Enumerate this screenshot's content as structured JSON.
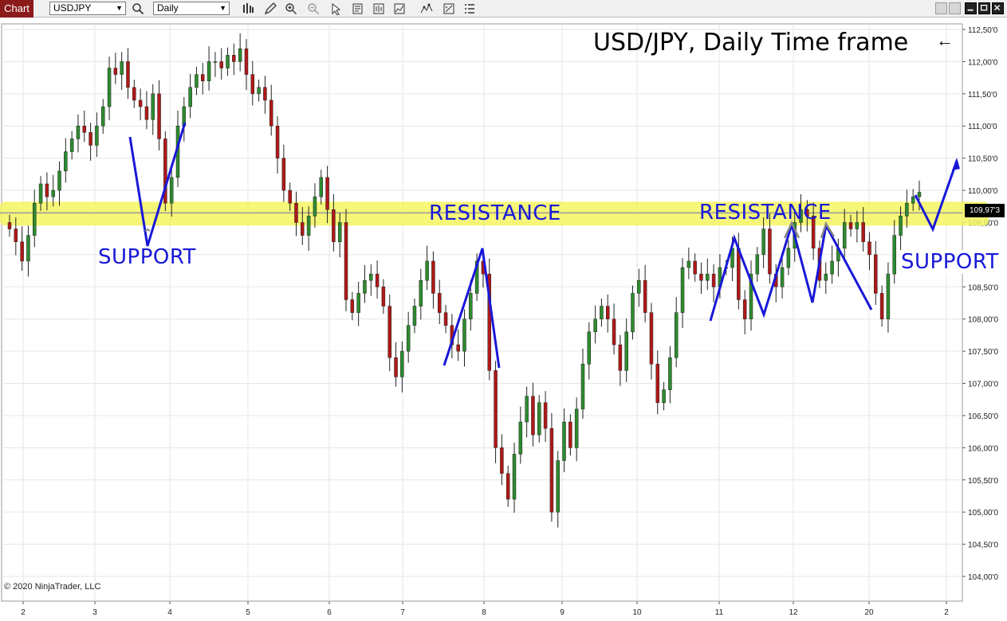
{
  "toolbar": {
    "tab_label": "Chart",
    "instrument": "USDJPY",
    "timeframe": "Daily",
    "icons": [
      "search-icon",
      "bars-icon",
      "pencil-icon",
      "zoom-in-icon",
      "zoom-out-icon",
      "pointer-icon",
      "properties-icon",
      "data-box-icon",
      "indicators-icon",
      "strategies-icon",
      "list-icon"
    ]
  },
  "title": "USD/JPY, Daily Time frame",
  "back_arrow": "←",
  "annotations": {
    "support_left": "SUPPORT",
    "resistance_mid": "RESISTANCE",
    "resistance_right": "RESISTANCE",
    "support_right": "SUPPORT"
  },
  "copyright": "© 2020 NinjaTrader, LLC",
  "current_price": "109,97'3",
  "colors": {
    "up_candle": "#2e8b2e",
    "down_candle": "#b01818",
    "zone": "#f5f560",
    "annotation": "#1818d8",
    "tab": "#8b1a1a"
  },
  "chart_data": {
    "type": "candlestick",
    "title": "USD/JPY, Daily Time frame",
    "ylim": [
      104.0,
      112.75
    ],
    "y_ticks": [
      "112,50'0",
      "112,00'0",
      "111,50'0",
      "111,00'0",
      "110,50'0",
      "110,00'0",
      "109,50'0",
      "109,00'0",
      "108,50'0",
      "108,00'0",
      "107,50'0",
      "107,00'0",
      "106,50'0",
      "106,00'0",
      "105,50'0",
      "105,00'0",
      "104,50'0",
      "104,00'0"
    ],
    "y_tick_values": [
      112.5,
      112.0,
      111.5,
      111.0,
      110.5,
      110.0,
      109.5,
      109.0,
      108.5,
      108.0,
      107.5,
      107.0,
      106.5,
      106.0,
      105.5,
      105.0,
      104.5,
      104.0
    ],
    "x_ticks": [
      "2",
      "3",
      "4",
      "5",
      "6",
      "7",
      "8",
      "9",
      "10",
      "11",
      "12",
      "20",
      "2"
    ],
    "zone_level": 109.65,
    "closes": [
      109.4,
      109.2,
      108.9,
      109.3,
      109.8,
      110.1,
      109.9,
      110.0,
      110.3,
      110.6,
      110.8,
      111.0,
      110.9,
      110.7,
      111.0,
      111.3,
      111.9,
      111.8,
      112.0,
      111.6,
      111.4,
      111.3,
      111.1,
      111.5,
      110.8,
      109.8,
      110.2,
      111.0,
      111.3,
      111.6,
      111.8,
      111.7,
      112.0,
      112.0,
      111.9,
      112.1,
      112.0,
      112.2,
      111.8,
      111.5,
      111.6,
      111.4,
      111.0,
      110.5,
      110.0,
      109.8,
      109.5,
      109.3,
      109.6,
      109.9,
      110.2,
      109.7,
      109.2,
      109.5,
      108.3,
      108.1,
      108.4,
      108.6,
      108.7,
      108.5,
      108.2,
      107.4,
      107.1,
      107.5,
      107.9,
      108.2,
      108.6,
      108.9,
      108.4,
      108.1,
      107.9,
      107.6,
      107.5,
      108.0,
      108.4,
      108.9,
      108.7,
      107.2,
      106.0,
      105.6,
      105.2,
      105.9,
      106.4,
      106.8,
      106.2,
      106.7,
      106.3,
      105.0,
      105.8,
      106.4,
      106.0,
      106.6,
      107.3,
      107.8,
      108.0,
      108.2,
      108.0,
      107.6,
      107.2,
      107.8,
      108.4,
      108.6,
      108.1,
      107.3,
      106.7,
      106.9,
      107.4,
      108.1,
      108.8,
      108.9,
      108.7,
      108.6,
      108.7,
      108.5,
      108.8,
      108.8,
      109.1,
      108.3,
      108.0,
      108.7,
      109.0,
      109.4,
      108.7,
      108.5,
      108.8,
      109.1,
      109.5,
      109.7,
      109.6,
      109.1,
      108.6,
      108.7,
      108.9,
      109.1,
      109.5,
      109.4,
      109.5,
      109.2,
      109.0,
      108.4,
      108.0,
      108.7,
      109.3,
      109.6,
      109.8,
      109.9,
      109.97
    ]
  }
}
